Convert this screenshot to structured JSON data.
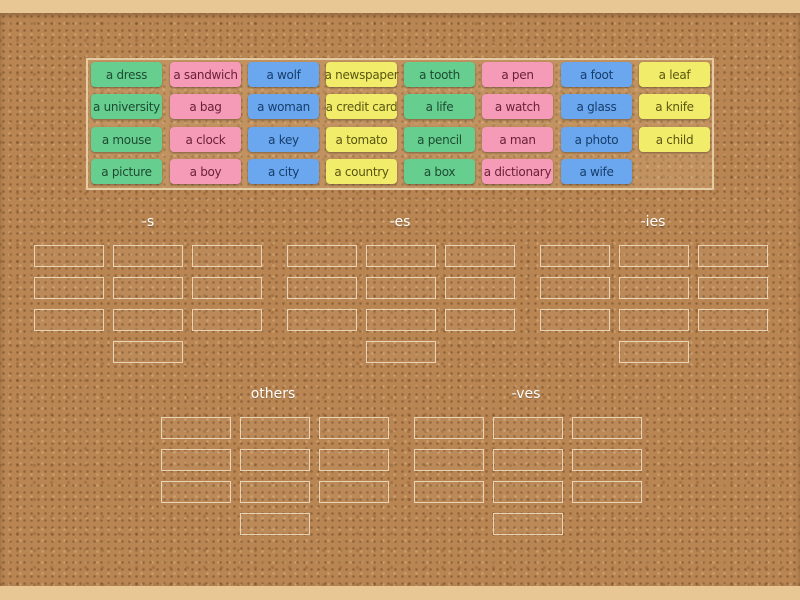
{
  "columns": [
    "-s",
    "-es",
    "-ies"
  ],
  "columns_bottom": [
    "others",
    "-ves"
  ],
  "tiles": [
    {
      "label": "a dress",
      "color": "green"
    },
    {
      "label": "a sandwich",
      "color": "pink"
    },
    {
      "label": "a wolf",
      "color": "blue"
    },
    {
      "label": "a newspaper",
      "color": "yellow"
    },
    {
      "label": "a tooth",
      "color": "green"
    },
    {
      "label": "a pen",
      "color": "pink"
    },
    {
      "label": "a foot",
      "color": "blue"
    },
    {
      "label": "a leaf",
      "color": "yellow"
    },
    {
      "label": "a university",
      "color": "green"
    },
    {
      "label": "a bag",
      "color": "pink"
    },
    {
      "label": "a woman",
      "color": "blue"
    },
    {
      "label": "a credit card",
      "color": "yellow"
    },
    {
      "label": "a life",
      "color": "green"
    },
    {
      "label": "a watch",
      "color": "pink"
    },
    {
      "label": "a glass",
      "color": "blue"
    },
    {
      "label": "a knife",
      "color": "yellow"
    },
    {
      "label": "a mouse",
      "color": "green"
    },
    {
      "label": "a clock",
      "color": "pink"
    },
    {
      "label": "a key",
      "color": "blue"
    },
    {
      "label": "a tomato",
      "color": "yellow"
    },
    {
      "label": "a pencil",
      "color": "green"
    },
    {
      "label": "a man",
      "color": "pink"
    },
    {
      "label": "a photo",
      "color": "blue"
    },
    {
      "label": "a child",
      "color": "yellow"
    },
    {
      "label": "a picture",
      "color": "green"
    },
    {
      "label": "a boy",
      "color": "pink"
    },
    {
      "label": "a city",
      "color": "blue"
    },
    {
      "label": "a country",
      "color": "yellow"
    },
    {
      "label": "a box",
      "color": "green"
    },
    {
      "label": "a dictionary",
      "color": "pink"
    },
    {
      "label": "a wife",
      "color": "blue"
    }
  ]
}
